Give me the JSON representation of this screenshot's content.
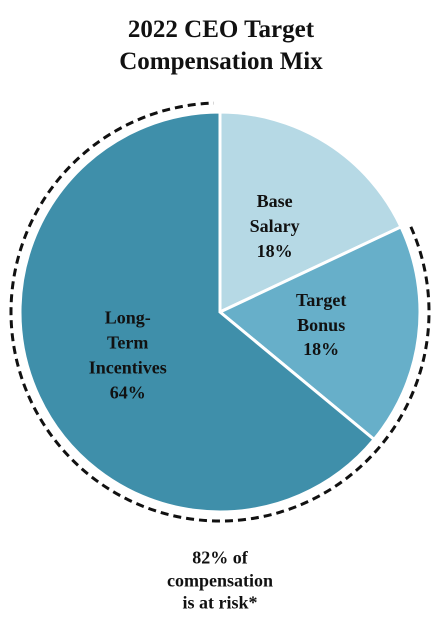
{
  "chart_data": {
    "type": "pie",
    "title": "2022 CEO Target\nCompensation Mix",
    "categories": [
      "Base\nSalary",
      "Target\nBonus",
      "Long-\nTerm\nIncentives"
    ],
    "values": [
      18,
      18,
      64
    ],
    "value_labels": [
      "18%",
      "18%",
      "64%"
    ],
    "colors": [
      "#b6d9e5",
      "#67afc9",
      "#3f8faa"
    ],
    "annotation": "82% of\ncompensation\nis at risk*"
  }
}
